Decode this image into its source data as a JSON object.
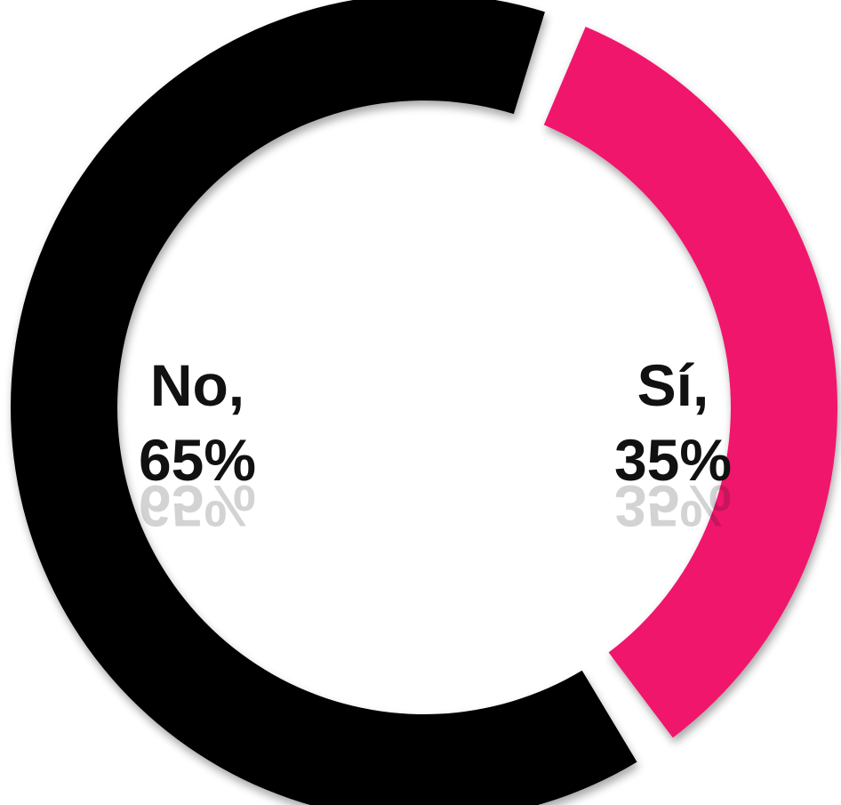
{
  "chart_data": {
    "type": "pie",
    "variant": "donut",
    "title": "",
    "legend": "none",
    "slices": [
      {
        "category": "Sí",
        "value": 35,
        "label_line1": "Sí,",
        "label_line2": "35%",
        "color": "#F0136C"
      },
      {
        "category": "No",
        "value": 65,
        "label_line1": "No,",
        "label_line2": "65%",
        "color": "#050505"
      }
    ]
  }
}
